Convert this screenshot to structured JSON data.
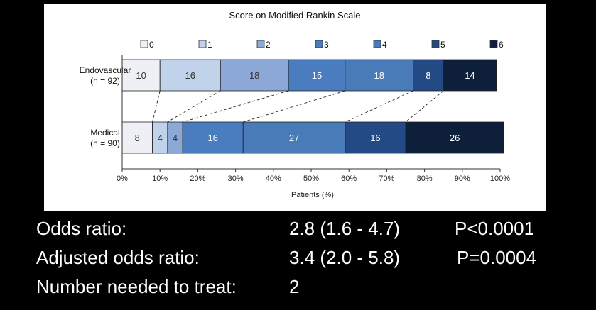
{
  "chart_data": {
    "type": "bar",
    "orientation": "horizontal",
    "stacked": true,
    "title": "Score on Modified Rankin Scale",
    "xlabel": "Patients (%)",
    "xlim": [
      0,
      100
    ],
    "xticks": [
      "0%",
      "10%",
      "20%",
      "30%",
      "40%",
      "50%",
      "60%",
      "70%",
      "80%",
      "90%",
      "100%"
    ],
    "legend_position": "top",
    "categories": [
      {
        "name": "Endovascular",
        "n_label": "(n = 92)"
      },
      {
        "name": "Medical",
        "n_label": "(n = 90)"
      }
    ],
    "series": [
      {
        "name": "0",
        "color": "#eef0f6",
        "values": [
          10,
          8
        ]
      },
      {
        "name": "1",
        "color": "#c1d3ea",
        "values": [
          16,
          4
        ]
      },
      {
        "name": "2",
        "color": "#8ba8d6",
        "values": [
          18,
          4
        ]
      },
      {
        "name": "3",
        "color": "#4a7dc0",
        "values": [
          15,
          16
        ]
      },
      {
        "name": "4",
        "color": "#4a7bb9",
        "values": [
          18,
          27
        ]
      },
      {
        "name": "5",
        "color": "#244a86",
        "values": [
          8,
          16
        ]
      },
      {
        "name": "6",
        "color": "#0e1f3a",
        "values": [
          14,
          26
        ]
      }
    ],
    "label_colors": [
      "#333333",
      "#333333",
      "#333333",
      "#ffffff",
      "#ffffff",
      "#ffffff",
      "#ffffff"
    ],
    "connector_lines": "dashed"
  },
  "stats": [
    {
      "label": "Odds ratio:",
      "value": "2.8 (1.6 - 4.7)",
      "p": "P<0.0001"
    },
    {
      "label": "Adjusted odds ratio:",
      "value": "3.4 (2.0 - 5.8)",
      "p": "P=0.0004"
    },
    {
      "label": "Number needed to treat:",
      "value": "2",
      "p": ""
    }
  ]
}
